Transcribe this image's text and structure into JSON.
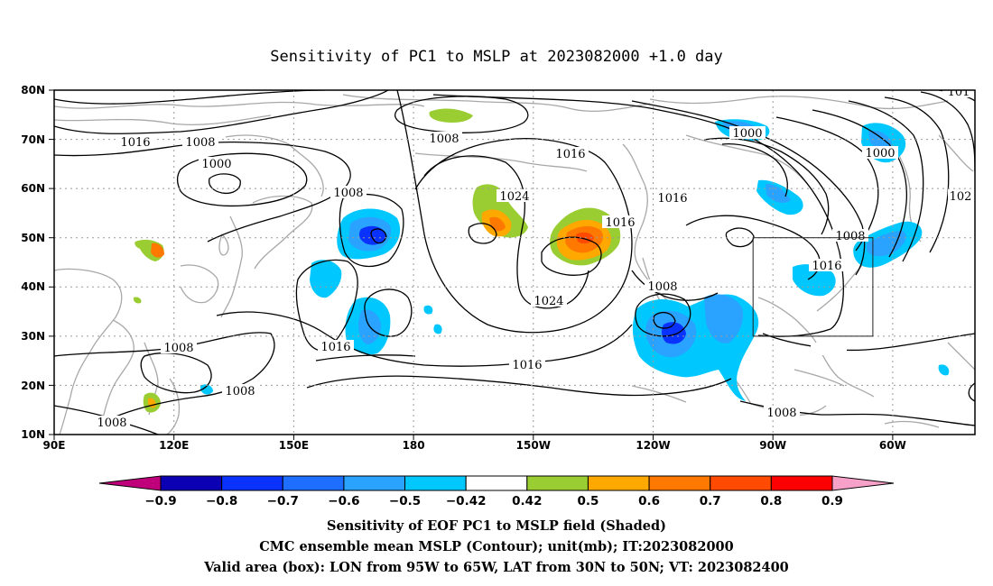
{
  "title": "Sensitivity of PC1 to MSLP at 2023082000 +1.0 day",
  "lat_labels": [
    "80N",
    "70N",
    "60N",
    "50N",
    "40N",
    "30N",
    "20N",
    "10N"
  ],
  "lon_labels": [
    "90E",
    "120E",
    "150E",
    "180",
    "150W",
    "120W",
    "90W",
    "60W"
  ],
  "contour_labels": [
    "1016",
    "1008",
    "1000",
    "1008",
    "1008",
    "1024",
    "1016",
    "1024",
    "1016",
    "1016",
    "1000",
    "1000",
    "1008",
    "1016",
    "1008",
    "1016",
    "1008",
    "1016",
    "1008",
    "1008",
    "1008",
    "101",
    "102"
  ],
  "colorbar": {
    "labels": [
      "-0.9",
      "-0.8",
      "-0.7",
      "-0.6",
      "-0.5",
      "-0.42",
      "0.42",
      "0.5",
      "0.6",
      "0.7",
      "0.8",
      "0.9"
    ],
    "colors": [
      "#0c00b4",
      "#0a32ff",
      "#1e6eff",
      "#2aa2ff",
      "#00c8ff",
      "#ffffff",
      "#9acd32",
      "#ffa800",
      "#ff7800",
      "#ff4a00",
      "#ff0000"
    ],
    "low_end_color": "#c0007a",
    "high_end_color": "#f7a0c8"
  },
  "valid_box": {
    "lon_min": -95,
    "lon_max": -65,
    "lat_min": 30,
    "lat_max": 50
  },
  "caption": [
    "Sensitivity of EOF PC1 to MSLP field (Shaded)",
    "CMC ensemble mean MSLP (Contour); unit(mb); IT:2023082000",
    "Valid area (box): LON from 95W to 65W, LAT from 30N to 50N; VT: 2023082400"
  ]
}
